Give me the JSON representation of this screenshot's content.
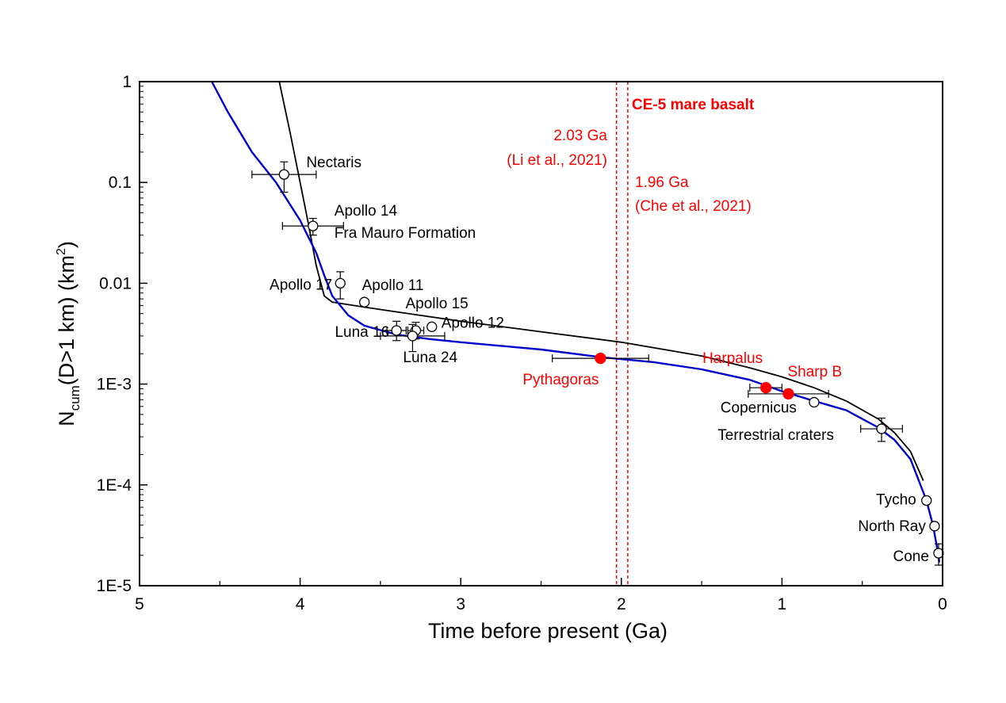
{
  "chart_data": {
    "type": "scatter",
    "title": "",
    "xlabel": "Time before present (Ga)",
    "ylabel_parts": {
      "n": "N",
      "sub": "cum",
      "mid": "(D>1 km) (km",
      "sup": "2",
      "end": ")"
    },
    "xlim": [
      5,
      0
    ],
    "ylim": [
      1e-05,
      1
    ],
    "y_scale": "log",
    "x_reversed": true,
    "grid": false,
    "x_ticks": [
      {
        "value": 5,
        "label": "5"
      },
      {
        "value": 4,
        "label": "4"
      },
      {
        "value": 3,
        "label": "3"
      },
      {
        "value": 2,
        "label": "2"
      },
      {
        "value": 1,
        "label": "1"
      },
      {
        "value": 0,
        "label": "0"
      }
    ],
    "y_ticks": [
      {
        "value": 1,
        "label": "1"
      },
      {
        "value": 0.1,
        "label": "0.1"
      },
      {
        "value": 0.01,
        "label": "0.01"
      },
      {
        "value": 0.001,
        "label": "1E-3"
      },
      {
        "value": 0.0001,
        "label": "1E-4"
      },
      {
        "value": 1e-05,
        "label": "1E-5"
      }
    ],
    "curves": [
      {
        "color": "#000000",
        "points": [
          [
            4.13,
            1.0
          ],
          [
            4.06,
            0.3
          ],
          [
            4.0,
            0.1
          ],
          [
            3.95,
            0.04
          ],
          [
            3.9,
            0.015
          ],
          [
            3.85,
            0.0075
          ],
          [
            3.8,
            0.0065
          ],
          [
            3.6,
            0.0058
          ],
          [
            3.4,
            0.0052
          ],
          [
            3.0,
            0.0042
          ],
          [
            2.5,
            0.0033
          ],
          [
            2.0,
            0.0026
          ],
          [
            1.5,
            0.0019
          ],
          [
            1.2,
            0.00145
          ],
          [
            1.0,
            0.00118
          ],
          [
            0.8,
            0.00092
          ],
          [
            0.6,
            0.00068
          ],
          [
            0.4,
            0.00045
          ],
          [
            0.3,
            0.00033
          ],
          [
            0.2,
            0.000215
          ],
          [
            0.12,
            0.00011
          ]
        ]
      },
      {
        "color": "#0000cc",
        "points": [
          [
            4.55,
            1.0
          ],
          [
            4.45,
            0.5
          ],
          [
            4.3,
            0.2
          ],
          [
            4.15,
            0.1
          ],
          [
            4.0,
            0.042
          ],
          [
            3.9,
            0.02
          ],
          [
            3.85,
            0.012
          ],
          [
            3.8,
            0.0075
          ],
          [
            3.7,
            0.0048
          ],
          [
            3.6,
            0.0038
          ],
          [
            3.4,
            0.0031
          ],
          [
            3.2,
            0.0028
          ],
          [
            3.0,
            0.0026
          ],
          [
            2.5,
            0.0022
          ],
          [
            2.13,
            0.00185
          ],
          [
            1.8,
            0.00165
          ],
          [
            1.5,
            0.0014
          ],
          [
            1.2,
            0.0011
          ],
          [
            1.0,
            0.00085
          ],
          [
            0.8,
            0.00068
          ],
          [
            0.6,
            0.00055
          ],
          [
            0.4,
            0.00037
          ],
          [
            0.3,
            0.00028
          ],
          [
            0.2,
            0.00018
          ],
          [
            0.1,
            7e-05
          ],
          [
            0.06,
            4e-05
          ],
          [
            0.03,
            2.2e-05
          ],
          [
            0.02,
            1.7e-05
          ]
        ]
      }
    ],
    "reference_lines": [
      {
        "x": 2.03,
        "color": "#ff0000",
        "style": "dashed"
      },
      {
        "x": 1.96,
        "color": "#ff0000",
        "style": "dashed"
      }
    ],
    "points": [
      {
        "label": "Nectaris",
        "x": 4.1,
        "y": 0.12,
        "xerr": 0.2,
        "yerr": [
          0.08,
          0.16
        ],
        "filled": false,
        "label_color": "#000000"
      },
      {
        "label": "Apollo 14\nFra Mauro Formation",
        "x": 3.92,
        "y": 0.037,
        "xerr": 0.19,
        "yerr": [
          0.03,
          0.044
        ],
        "filled": false,
        "label_color": "#000000"
      },
      {
        "label": "Apollo 17",
        "x": 3.75,
        "y": 0.01,
        "xerr": 0.01,
        "yerr": [
          0.007,
          0.013
        ],
        "filled": false,
        "label_color": "#000000"
      },
      {
        "label": "Apollo 11",
        "x": 3.6,
        "y": 0.0065,
        "filled": false,
        "label_color": "#000000"
      },
      {
        "label": "Apollo 15",
        "x": 3.28,
        "y": 0.0034,
        "xerr": 0.05,
        "yerr": [
          0.0028,
          0.0041
        ],
        "filled": false,
        "label_color": "#000000"
      },
      {
        "label": "Apollo 12",
        "x": 3.18,
        "y": 0.0037,
        "filled": false,
        "label_color": "#000000"
      },
      {
        "label": "Luna 16",
        "x": 3.4,
        "y": 0.0034,
        "xerr": 0.06,
        "yerr": [
          0.0027,
          0.0042
        ],
        "filled": false,
        "label_color": "#000000"
      },
      {
        "label": "Luna 24",
        "x": 3.3,
        "y": 0.003,
        "xerr": 0.2,
        "yerr": [
          0.0021,
          0.0039
        ],
        "filled": false,
        "label_color": "#000000"
      },
      {
        "label": "Pythagoras",
        "x": 2.13,
        "y": 0.0018,
        "xerr": 0.3,
        "filled": true,
        "label_color": "#ff0000"
      },
      {
        "label": "Harpalus",
        "x": 1.1,
        "y": 0.00092,
        "xerr": 0.1,
        "filled": true,
        "label_color": "#ff0000"
      },
      {
        "label": "Sharp B",
        "x": 0.96,
        "y": 0.0008,
        "xerr": 0.25,
        "filled": true,
        "label_color": "#ff0000"
      },
      {
        "label": "Copernicus",
        "x": 0.8,
        "y": 0.00066,
        "filled": false,
        "label_color": "#000000"
      },
      {
        "label": "Terrestrial craters",
        "x": 0.38,
        "y": 0.00036,
        "xerr": 0.13,
        "yerr": [
          0.00027,
          0.00046
        ],
        "filled": false,
        "label_color": "#000000"
      },
      {
        "label": "Tycho",
        "x": 0.1,
        "y": 7e-05,
        "filled": false,
        "label_color": "#000000"
      },
      {
        "label": "North Ray",
        "x": 0.05,
        "y": 3.9e-05,
        "filled": false,
        "label_color": "#000000"
      },
      {
        "label": "Cone",
        "x": 0.025,
        "y": 2.1e-05,
        "xerr": 0.01,
        "yerr": [
          1.6e-05,
          2.6e-05
        ],
        "filled": false,
        "label_color": "#000000"
      }
    ],
    "annotations": [
      {
        "text": "CE-5 mare basalt",
        "color": "#ff0000",
        "bold": true
      },
      {
        "text": "2.03 Ga",
        "color": "#ff0000"
      },
      {
        "text": "(Li et al., 2021)",
        "color": "#ff0000"
      },
      {
        "text": "1.96 Ga",
        "color": "#ff0000"
      },
      {
        "text": "(Che et al., 2021)",
        "color": "#ff0000"
      }
    ]
  }
}
